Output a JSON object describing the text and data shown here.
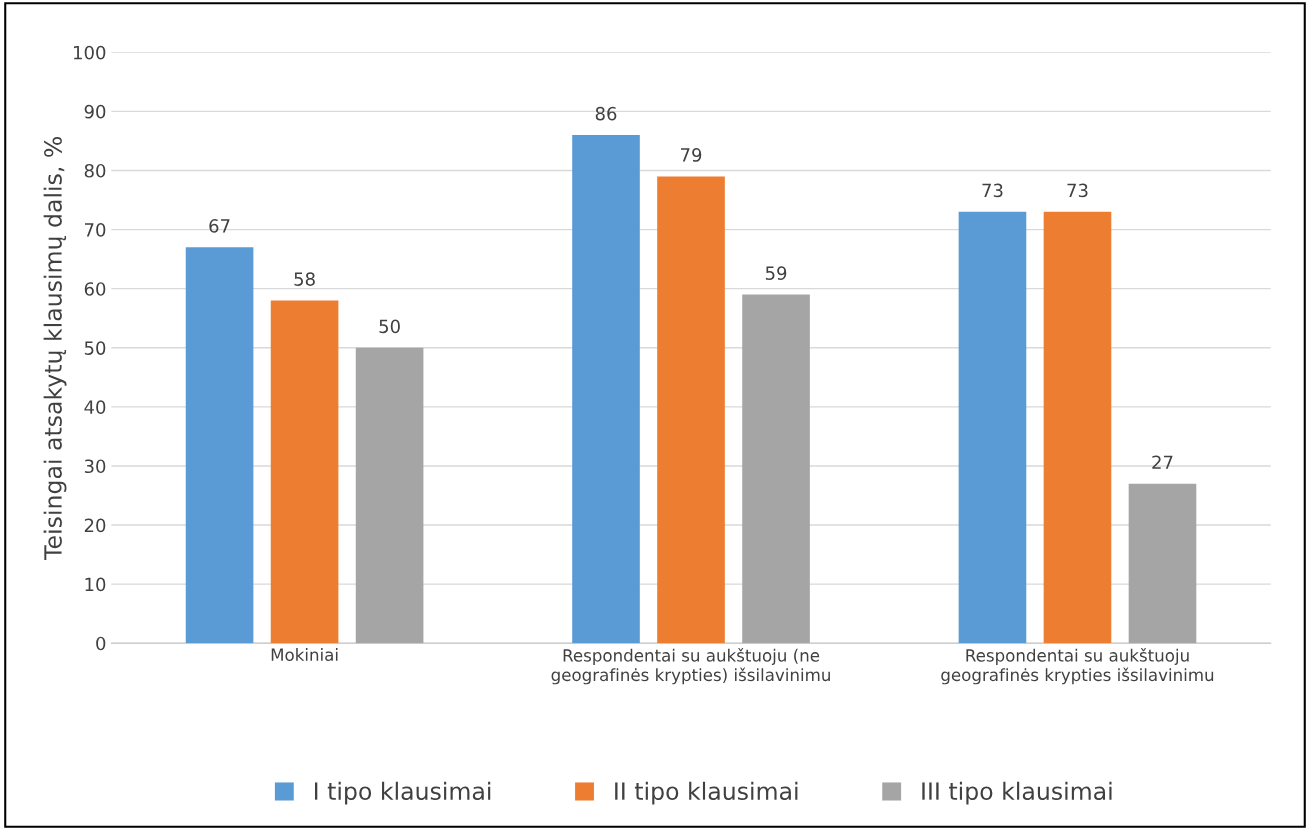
{
  "chart_data": {
    "type": "bar",
    "ylabel": "Teisingai atsakytų klausimų dalis, %",
    "categories": [
      "Mokiniai",
      "Respondentai su aukštuoju (ne\ngeografinės krypties) išsilavinimu",
      "Respondentai su aukštuoju\ngeografinės krypties išsilavinimu"
    ],
    "series": [
      {
        "name": "I tipo klausimai",
        "color": "#5b9bd5",
        "values": [
          67,
          86,
          73
        ]
      },
      {
        "name": "II tipo klausimai",
        "color": "#ed7d31",
        "values": [
          58,
          79,
          73
        ]
      },
      {
        "name": "III tipo klausimai",
        "color": "#a5a5a5",
        "values": [
          50,
          59,
          27
        ]
      }
    ],
    "ylim": [
      0,
      100
    ],
    "yticks": [
      0,
      10,
      20,
      30,
      40,
      50,
      60,
      70,
      80,
      90,
      100
    ],
    "grid": "y",
    "legend": "bottom",
    "data_labels": true
  }
}
